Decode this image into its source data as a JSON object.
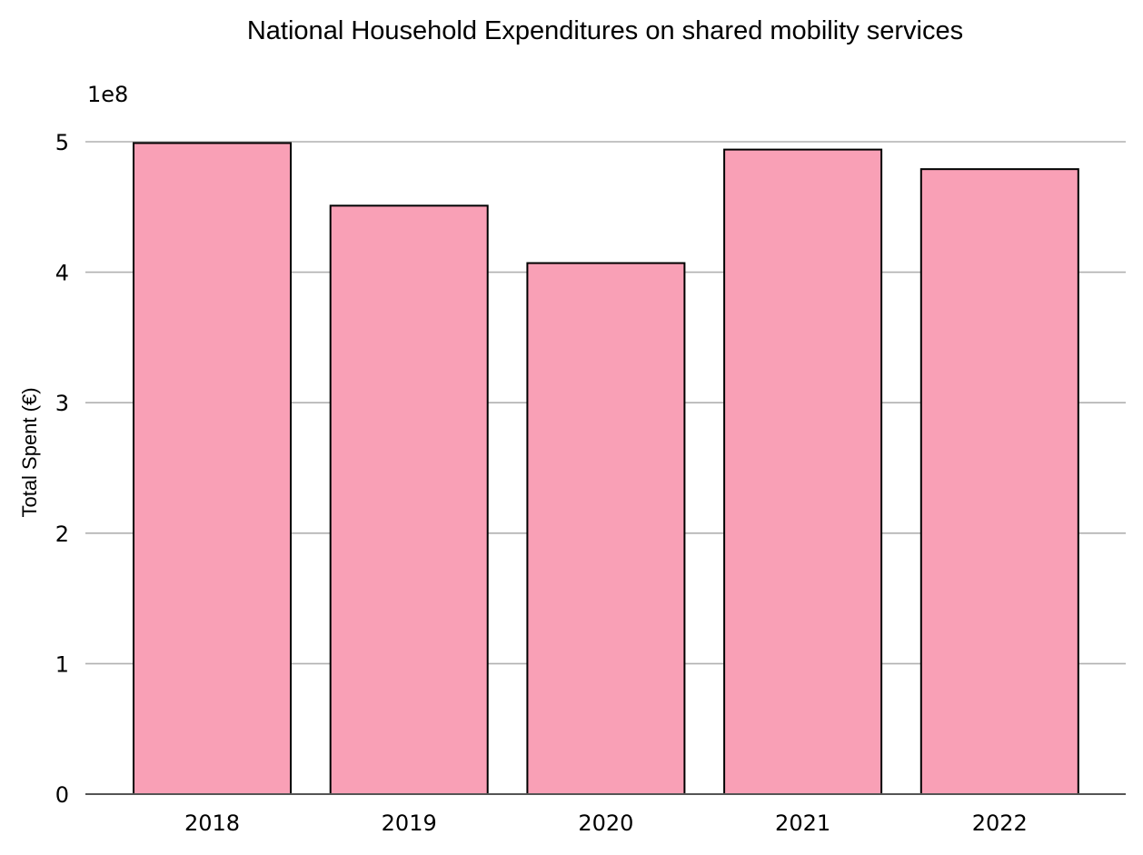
{
  "chart_data": {
    "type": "bar",
    "title": "National Household Expenditures on shared mobility services",
    "ylabel": "Total Spent (€)",
    "xlabel": "",
    "y_offset_label": "1e8",
    "y_scale": 100000000,
    "categories": [
      "2018",
      "2019",
      "2020",
      "2021",
      "2022"
    ],
    "values": [
      499000000,
      451000000,
      407000000,
      494000000,
      479000000
    ],
    "ylim": [
      0,
      500000000
    ],
    "yticks": [
      0,
      1,
      2,
      3,
      4,
      5
    ],
    "grid": "horizontal",
    "bar_color": "#f9a0b6",
    "bar_edge_color": "#000000",
    "grid_color": "#b0b0b0"
  }
}
